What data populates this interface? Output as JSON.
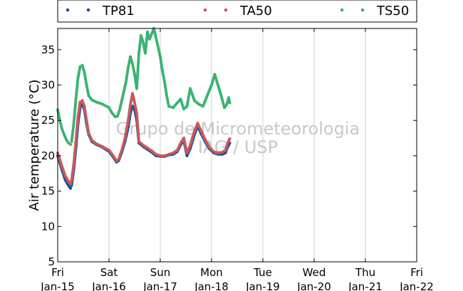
{
  "chart_data": {
    "type": "scatter",
    "ylabel": "Air temperature (°C)",
    "ylim": [
      5,
      38
    ],
    "yticks": [
      5,
      10,
      15,
      20,
      25,
      30,
      35
    ],
    "xlim": [
      "2015-01-15",
      "2015-01-22"
    ],
    "xticks": [
      {
        "day": "Fri",
        "date": "Jan-15"
      },
      {
        "day": "Sat",
        "date": "Jan-16"
      },
      {
        "day": "Sun",
        "date": "Jan-17"
      },
      {
        "day": "Mon",
        "date": "Jan-18"
      },
      {
        "day": "Tue",
        "date": "Jan-19"
      },
      {
        "day": "Wed",
        "date": "Jan-20"
      },
      {
        "day": "Thu",
        "date": "Jan-21"
      },
      {
        "day": "Fri",
        "date": "Jan-22"
      }
    ],
    "grid": "vertical",
    "legend": "top",
    "watermark": [
      "Grupo de Micrometeorologia",
      "IAG / USP"
    ],
    "series": [
      {
        "name": "TP81",
        "color": "#1f4e96",
        "points": [
          [
            "2015-01-15 00:00",
            20.0
          ],
          [
            "2015-01-15 02:00",
            18.0
          ],
          [
            "2015-01-15 03:30",
            16.6
          ],
          [
            "2015-01-15 05:00",
            15.8
          ],
          [
            "2015-01-15 06:00",
            15.4
          ],
          [
            "2015-01-15 06:30",
            15.8
          ],
          [
            "2015-01-15 07:30",
            18.0
          ],
          [
            "2015-01-15 08:30",
            21.0
          ],
          [
            "2015-01-15 09:30",
            24.5
          ],
          [
            "2015-01-15 10:30",
            26.8
          ],
          [
            "2015-01-15 11:30",
            27.3
          ],
          [
            "2015-01-15 12:30",
            26.5
          ],
          [
            "2015-01-15 13:30",
            24.5
          ],
          [
            "2015-01-15 14:30",
            23.0
          ],
          [
            "2015-01-15 16:00",
            22.0
          ],
          [
            "2015-01-15 18:00",
            21.6
          ],
          [
            "2015-01-15 21:00",
            21.2
          ],
          [
            "2015-01-16 00:00",
            20.6
          ],
          [
            "2015-01-16 02:00",
            19.8
          ],
          [
            "2015-01-16 03:30",
            19.1
          ],
          [
            "2015-01-16 04:30",
            19.3
          ],
          [
            "2015-01-16 06:00",
            20.5
          ],
          [
            "2015-01-16 07:30",
            22.0
          ],
          [
            "2015-01-16 09:00",
            24.0
          ],
          [
            "2015-01-16 10:00",
            26.0
          ],
          [
            "2015-01-16 11:00",
            27.0
          ],
          [
            "2015-01-16 12:00",
            26.5
          ],
          [
            "2015-01-16 13:00",
            25.0
          ],
          [
            "2015-01-16 14:00",
            21.8
          ],
          [
            "2015-01-16 16:00",
            21.3
          ],
          [
            "2015-01-16 18:00",
            20.9
          ],
          [
            "2015-01-16 20:00",
            20.5
          ],
          [
            "2015-01-16 22:00",
            20.0
          ],
          [
            "2015-01-17 00:00",
            19.9
          ],
          [
            "2015-01-17 02:00",
            19.9
          ],
          [
            "2015-01-17 04:00",
            20.1
          ],
          [
            "2015-01-17 06:00",
            20.2
          ],
          [
            "2015-01-17 08:00",
            20.6
          ],
          [
            "2015-01-17 09:30",
            21.5
          ],
          [
            "2015-01-17 11:00",
            22.2
          ],
          [
            "2015-01-17 12:30",
            20.0
          ],
          [
            "2015-01-17 14:00",
            21.0
          ],
          [
            "2015-01-17 16:00",
            23.0
          ],
          [
            "2015-01-17 17:30",
            24.2
          ],
          [
            "2015-01-17 19:00",
            23.2
          ],
          [
            "2015-01-17 21:00",
            22.0
          ],
          [
            "2015-01-17 23:00",
            21.0
          ],
          [
            "2015-01-18 01:00",
            20.4
          ],
          [
            "2015-01-18 03:00",
            20.2
          ],
          [
            "2015-01-18 05:00",
            20.2
          ],
          [
            "2015-01-18 06:30",
            20.4
          ],
          [
            "2015-01-18 07:30",
            21.2
          ],
          [
            "2015-01-18 08:30",
            21.8
          ]
        ]
      },
      {
        "name": "TA50",
        "color": "#c85a5a",
        "points": [
          [
            "2015-01-15 00:00",
            20.4
          ],
          [
            "2015-01-15 02:00",
            18.5
          ],
          [
            "2015-01-15 03:30",
            17.2
          ],
          [
            "2015-01-15 05:00",
            16.4
          ],
          [
            "2015-01-15 06:00",
            16.0
          ],
          [
            "2015-01-15 06:30",
            16.5
          ],
          [
            "2015-01-15 07:30",
            18.8
          ],
          [
            "2015-01-15 08:30",
            22.0
          ],
          [
            "2015-01-15 09:30",
            25.5
          ],
          [
            "2015-01-15 10:30",
            27.6
          ],
          [
            "2015-01-15 11:30",
            27.8
          ],
          [
            "2015-01-15 12:30",
            27.0
          ],
          [
            "2015-01-15 13:30",
            25.0
          ],
          [
            "2015-01-15 14:30",
            23.2
          ],
          [
            "2015-01-15 16:00",
            22.2
          ],
          [
            "2015-01-15 18:00",
            21.7
          ],
          [
            "2015-01-15 21:00",
            21.3
          ],
          [
            "2015-01-16 00:00",
            20.8
          ],
          [
            "2015-01-16 02:00",
            20.0
          ],
          [
            "2015-01-16 03:30",
            19.3
          ],
          [
            "2015-01-16 04:30",
            19.5
          ],
          [
            "2015-01-16 06:00",
            20.8
          ],
          [
            "2015-01-16 07:30",
            22.5
          ],
          [
            "2015-01-16 09:00",
            25.0
          ],
          [
            "2015-01-16 10:00",
            27.2
          ],
          [
            "2015-01-16 11:00",
            28.8
          ],
          [
            "2015-01-16 12:00",
            27.5
          ],
          [
            "2015-01-16 13:00",
            26.0
          ],
          [
            "2015-01-16 14:00",
            22.0
          ],
          [
            "2015-01-16 16:00",
            21.5
          ],
          [
            "2015-01-16 18:00",
            21.1
          ],
          [
            "2015-01-16 20:00",
            20.7
          ],
          [
            "2015-01-16 22:00",
            20.2
          ],
          [
            "2015-01-17 00:00",
            20.0
          ],
          [
            "2015-01-17 02:00",
            20.0
          ],
          [
            "2015-01-17 04:00",
            20.2
          ],
          [
            "2015-01-17 06:00",
            20.4
          ],
          [
            "2015-01-17 08:00",
            20.8
          ],
          [
            "2015-01-17 09:30",
            21.8
          ],
          [
            "2015-01-17 11:00",
            22.5
          ],
          [
            "2015-01-17 12:30",
            20.4
          ],
          [
            "2015-01-17 14:00",
            21.5
          ],
          [
            "2015-01-17 16:00",
            23.5
          ],
          [
            "2015-01-17 17:30",
            24.6
          ],
          [
            "2015-01-17 19:00",
            23.6
          ],
          [
            "2015-01-17 21:00",
            22.3
          ],
          [
            "2015-01-17 23:00",
            21.2
          ],
          [
            "2015-01-18 01:00",
            20.6
          ],
          [
            "2015-01-18 03:00",
            20.4
          ],
          [
            "2015-01-18 05:00",
            20.5
          ],
          [
            "2015-01-18 06:30",
            20.8
          ],
          [
            "2015-01-18 07:30",
            21.8
          ],
          [
            "2015-01-18 08:30",
            22.4
          ]
        ]
      },
      {
        "name": "TS50",
        "color": "#3cb371",
        "points": [
          [
            "2015-01-15 00:00",
            26.5
          ],
          [
            "2015-01-15 01:00",
            25.0
          ],
          [
            "2015-01-15 02:00",
            23.8
          ],
          [
            "2015-01-15 03:00",
            23.0
          ],
          [
            "2015-01-15 04:00",
            22.3
          ],
          [
            "2015-01-15 05:00",
            21.8
          ],
          [
            "2015-01-15 06:00",
            21.6
          ],
          [
            "2015-01-15 06:30",
            22.0
          ],
          [
            "2015-01-15 07:30",
            24.5
          ],
          [
            "2015-01-15 08:30",
            28.0
          ],
          [
            "2015-01-15 09:30",
            31.0
          ],
          [
            "2015-01-15 10:30",
            32.6
          ],
          [
            "2015-01-15 11:30",
            32.8
          ],
          [
            "2015-01-15 12:30",
            31.8
          ],
          [
            "2015-01-15 13:30",
            30.0
          ],
          [
            "2015-01-15 14:30",
            28.5
          ],
          [
            "2015-01-15 16:00",
            27.9
          ],
          [
            "2015-01-15 18:00",
            27.6
          ],
          [
            "2015-01-15 21:00",
            27.3
          ],
          [
            "2015-01-16 00:00",
            26.8
          ],
          [
            "2015-01-16 01:30",
            26.0
          ],
          [
            "2015-01-16 03:00",
            25.5
          ],
          [
            "2015-01-16 04:00",
            25.6
          ],
          [
            "2015-01-16 05:00",
            26.5
          ],
          [
            "2015-01-16 06:30",
            28.5
          ],
          [
            "2015-01-16 08:00",
            30.5
          ],
          [
            "2015-01-16 09:00",
            32.5
          ],
          [
            "2015-01-16 10:00",
            34.0
          ],
          [
            "2015-01-16 11:00",
            33.0
          ],
          [
            "2015-01-16 12:00",
            31.5
          ],
          [
            "2015-01-16 13:00",
            29.5
          ],
          [
            "2015-01-16 14:00",
            34.5
          ],
          [
            "2015-01-16 15:00",
            37.0
          ],
          [
            "2015-01-16 16:00",
            36.0
          ],
          [
            "2015-01-16 17:00",
            34.5
          ],
          [
            "2015-01-16 18:00",
            37.5
          ],
          [
            "2015-01-16 19:00",
            36.5
          ],
          [
            "2015-01-16 21:00",
            38.0
          ],
          [
            "2015-01-17 00:00",
            34.0
          ],
          [
            "2015-01-17 01:00",
            32.0
          ],
          [
            "2015-01-17 02:00",
            30.5
          ],
          [
            "2015-01-17 03:00",
            28.5
          ],
          [
            "2015-01-17 04:00",
            27.0
          ],
          [
            "2015-01-17 06:00",
            26.8
          ],
          [
            "2015-01-17 08:00",
            27.5
          ],
          [
            "2015-01-17 09:30",
            28.0
          ],
          [
            "2015-01-17 11:00",
            26.6
          ],
          [
            "2015-01-17 12:30",
            27.0
          ],
          [
            "2015-01-17 14:00",
            29.5
          ],
          [
            "2015-01-17 16:00",
            27.8
          ],
          [
            "2015-01-17 18:00",
            27.3
          ],
          [
            "2015-01-17 20:00",
            27.0
          ],
          [
            "2015-01-17 22:00",
            28.5
          ],
          [
            "2015-01-18 00:00",
            30.0
          ],
          [
            "2015-01-18 01:30",
            31.5
          ],
          [
            "2015-01-18 03:00",
            30.0
          ],
          [
            "2015-01-18 04:30",
            28.5
          ],
          [
            "2015-01-18 06:00",
            26.8
          ],
          [
            "2015-01-18 07:00",
            27.2
          ],
          [
            "2015-01-18 08:00",
            28.2
          ],
          [
            "2015-01-18 08:30",
            27.5
          ]
        ]
      }
    ]
  }
}
